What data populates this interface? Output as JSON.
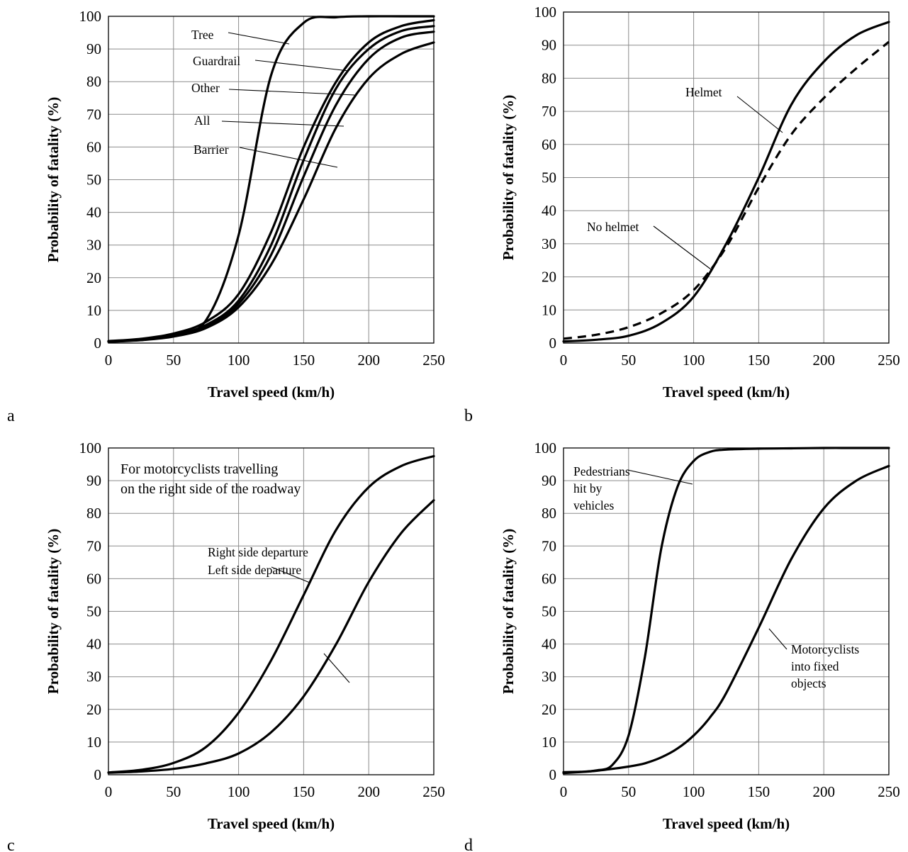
{
  "chart_data": [
    {
      "type": "line",
      "panel_label": "a",
      "xlabel": "Travel speed (km/h)",
      "ylabel": "Probability of fatality (%)",
      "xlim": [
        0,
        250
      ],
      "ylim": [
        0,
        100
      ],
      "x_ticks": [
        "0",
        "50",
        "100",
        "150",
        "200",
        "250"
      ],
      "y_ticks": [
        "0",
        "10",
        "20",
        "30",
        "40",
        "50",
        "60",
        "70",
        "80",
        "90",
        "100"
      ],
      "grid": true,
      "x": [
        0,
        25,
        50,
        75,
        100,
        125,
        150,
        175,
        200,
        225,
        250
      ],
      "series": [
        {
          "name": "Tree",
          "values": [
            0.5,
            1.2,
            2.8,
            7,
            33,
            82,
            98,
            99.7,
            100,
            100,
            100
          ]
        },
        {
          "name": "Guardrail",
          "values": [
            0.6,
            1.3,
            2.9,
            6.5,
            15,
            34,
            60,
            80,
            92,
            97,
            98.8
          ]
        },
        {
          "name": "Other",
          "values": [
            0.5,
            1.1,
            2.5,
            5.5,
            13,
            30,
            56,
            78,
            90,
            95.5,
            97
          ]
        },
        {
          "name": "All",
          "values": [
            0.4,
            1,
            2.2,
            5,
            12,
            27,
            51,
            73,
            87,
            93.5,
            95.3
          ]
        },
        {
          "name": "Barrier",
          "values": [
            0.4,
            0.9,
            2,
            4.6,
            11,
            24,
            44,
            66,
            81,
            88.5,
            92
          ]
        }
      ],
      "annotations": [
        "Tree",
        "Guardrail",
        "Other",
        "All",
        "Barrier"
      ]
    },
    {
      "type": "line",
      "panel_label": "b",
      "xlabel": "Travel speed (km/h)",
      "ylabel": "Probability of fatality (%)",
      "xlim": [
        0,
        250
      ],
      "ylim": [
        0,
        100
      ],
      "x_ticks": [
        "0",
        "50",
        "100",
        "150",
        "200",
        "250"
      ],
      "y_ticks": [
        "0",
        "10",
        "20",
        "30",
        "40",
        "50",
        "60",
        "70",
        "80",
        "90",
        "100"
      ],
      "grid": true,
      "x": [
        0,
        25,
        50,
        75,
        100,
        125,
        150,
        175,
        200,
        225,
        250
      ],
      "series": [
        {
          "name": "Helmet",
          "values": [
            0.5,
            1,
            2.2,
            6,
            14,
            30,
            50,
            72,
            85,
            93,
            97
          ]
        },
        {
          "name": "No helmet",
          "values": [
            1.3,
            2.5,
            4.8,
            9,
            16,
            29,
            47,
            63,
            74,
            83,
            91
          ]
        }
      ],
      "annotations": [
        "Helmet",
        "No helmet"
      ]
    },
    {
      "type": "line",
      "panel_label": "c",
      "xlabel": "Travel speed (km/h)",
      "ylabel": "Probability of fatality (%)",
      "xlim": [
        0,
        250
      ],
      "ylim": [
        0,
        100
      ],
      "x_ticks": [
        "0",
        "50",
        "100",
        "150",
        "200",
        "250"
      ],
      "y_ticks": [
        "0",
        "10",
        "20",
        "30",
        "40",
        "50",
        "60",
        "70",
        "80",
        "90",
        "100"
      ],
      "grid": true,
      "x": [
        0,
        25,
        50,
        75,
        100,
        125,
        150,
        175,
        200,
        225,
        250
      ],
      "series": [
        {
          "name": "Right side departure",
          "values": [
            0.7,
            1.5,
            3.6,
            8.5,
            19,
            35,
            55,
            75,
            88,
            94.5,
            97.5
          ]
        },
        {
          "name": "Left side departure",
          "values": [
            0.6,
            1,
            1.8,
            3.5,
            6.5,
            13,
            24,
            40,
            59,
            74,
            84
          ]
        }
      ],
      "annotations": [
        "Right side departure",
        "Left side departure"
      ],
      "note": [
        "For motorcyclists travelling",
        "on the right side of the roadway"
      ]
    },
    {
      "type": "line",
      "panel_label": "d",
      "xlabel": "Travel speed (km/h)",
      "ylabel": "Probability of fatality (%)",
      "xlim": [
        0,
        250
      ],
      "ylim": [
        0,
        100
      ],
      "x_ticks": [
        "0",
        "50",
        "100",
        "150",
        "200",
        "250"
      ],
      "y_ticks": [
        "0",
        "10",
        "20",
        "30",
        "40",
        "50",
        "60",
        "70",
        "80",
        "90",
        "100"
      ],
      "grid": true,
      "x": [
        0,
        12.5,
        25,
        37.5,
        50,
        62.5,
        75,
        87.5,
        100,
        112.5,
        125,
        150,
        175,
        200,
        225,
        250
      ],
      "series": [
        {
          "name": "Pedestrians hit by vehicles",
          "values": [
            0.8,
            0.9,
            1.3,
            3,
            12,
            36,
            69,
            88,
            96,
            98.8,
            99.5,
            99.8,
            99.9,
            100,
            100,
            100
          ]
        },
        {
          "name": "Motorcyclists into fixed objects",
          "values": [
            0.5,
            0.8,
            1.2,
            1.8,
            2.5,
            3.5,
            5.3,
            8,
            12,
            17.5,
            25,
            45,
            66,
            81.5,
            90,
            94.5
          ]
        }
      ],
      "annotations": [
        "Pedestrians",
        "hit by",
        "vehicles",
        "Motorcyclists",
        "into fixed",
        "objects"
      ]
    }
  ]
}
